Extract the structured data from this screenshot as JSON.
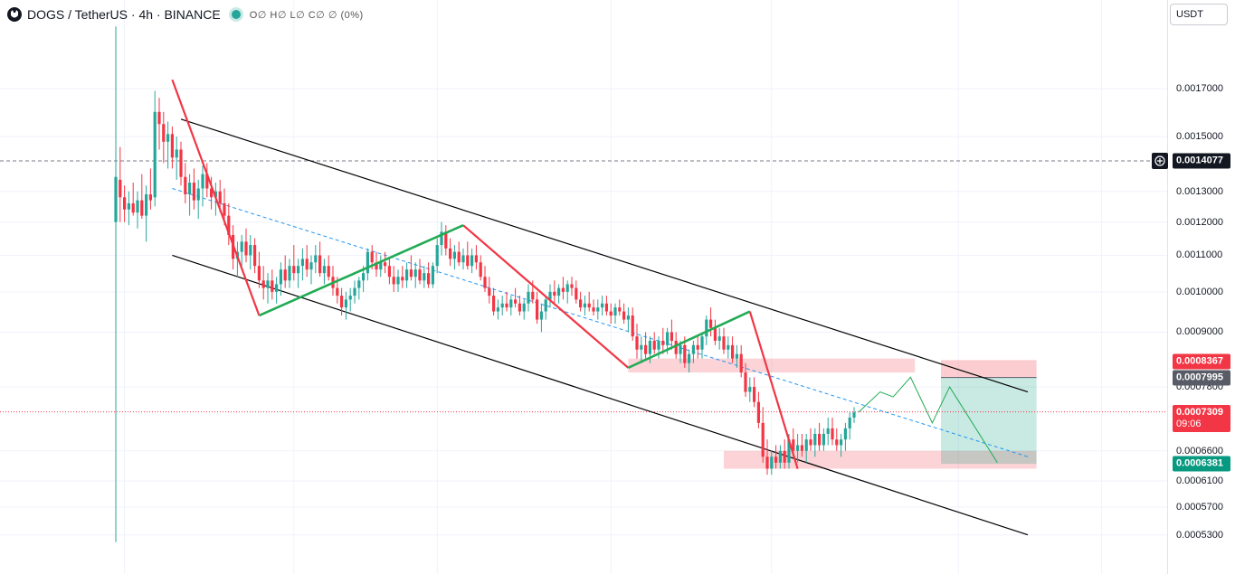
{
  "header": {
    "symbol_title": "DOGS / TetherUS · 4h · BINANCE",
    "ohlc_text": "O∅ H∅ L∅ C∅ ∅ (0%)",
    "logo_icon": "dogs-logo-icon",
    "status_color": "#26a69a"
  },
  "currency_button": {
    "label": "USDT",
    "icon": "chevron-down-icon"
  },
  "price_tags": {
    "crosshair": "0.0014077",
    "stop": "0.0008367",
    "entry": "0.0007995",
    "last": "0.0007309",
    "countdown": "09:06",
    "target": "0.0006381"
  },
  "colors": {
    "up": "#26a69a",
    "down": "#f23645",
    "zigzag_down": "#f23645",
    "zigzag_up": "#22ab55",
    "channel": "#000000",
    "midline": "#2196f3"
  },
  "chart_data": {
    "type": "candlestick",
    "symbol": "DOGS/USDT",
    "timeframe": "4h",
    "exchange": "BINANCE",
    "y_scale": "log",
    "y_range": [
      0.00051,
      0.00195
    ],
    "y_ticks": [
      "0.0017000",
      "0.0015000",
      "0.0013000",
      "0.0012000",
      "0.0011000",
      "0.0010000",
      "0.0009000",
      "0.0007800",
      "0.0006600",
      "0.0006100",
      "0.0005700",
      "0.0005300"
    ],
    "x_range": [
      0,
      240
    ],
    "vertical_gridlines_at": [
      2,
      41,
      74,
      114,
      151,
      194,
      227,
      249
    ],
    "candles": [
      [
        0,
        0.0012,
        0.002,
        0.00052,
        0.00135
      ],
      [
        1,
        0.00134,
        0.00146,
        0.0012,
        0.00128
      ],
      [
        2,
        0.00128,
        0.00132,
        0.0012,
        0.00124
      ],
      [
        3,
        0.00124,
        0.0013,
        0.00119,
        0.00126
      ],
      [
        4,
        0.00126,
        0.00133,
        0.00122,
        0.00123
      ],
      [
        5,
        0.00123,
        0.0013,
        0.00118,
        0.00127
      ],
      [
        6,
        0.00127,
        0.00136,
        0.00121,
        0.00122
      ],
      [
        7,
        0.00122,
        0.00132,
        0.00114,
        0.00129
      ],
      [
        8,
        0.00129,
        0.00138,
        0.00124,
        0.00127
      ],
      [
        9,
        0.00128,
        0.00169,
        0.00125,
        0.0016
      ],
      [
        10,
        0.0016,
        0.00166,
        0.00145,
        0.00155
      ],
      [
        11,
        0.00155,
        0.0016,
        0.0014,
        0.00148
      ],
      [
        12,
        0.00148,
        0.00156,
        0.00138,
        0.00151
      ],
      [
        13,
        0.00151,
        0.00154,
        0.00138,
        0.00142
      ],
      [
        14,
        0.00142,
        0.0015,
        0.00134,
        0.00145
      ],
      [
        15,
        0.00145,
        0.00148,
        0.00132,
        0.00135
      ],
      [
        16,
        0.00135,
        0.0014,
        0.00126,
        0.00129
      ],
      [
        17,
        0.00129,
        0.00136,
        0.00122,
        0.00133
      ],
      [
        18,
        0.00133,
        0.00138,
        0.00124,
        0.00127
      ],
      [
        19,
        0.00127,
        0.00134,
        0.00121,
        0.00131
      ],
      [
        20,
        0.00131,
        0.00139,
        0.00125,
        0.00136
      ],
      [
        21,
        0.00136,
        0.0014,
        0.00128,
        0.00131
      ],
      [
        22,
        0.00131,
        0.00135,
        0.00124,
        0.00128
      ],
      [
        23,
        0.00128,
        0.00133,
        0.00122,
        0.0013
      ],
      [
        24,
        0.0013,
        0.00134,
        0.00123,
        0.00126
      ],
      [
        25,
        0.00126,
        0.00131,
        0.00119,
        0.00122
      ],
      [
        26,
        0.00122,
        0.00126,
        0.00113,
        0.00116
      ],
      [
        27,
        0.00116,
        0.00119,
        0.00106,
        0.00109
      ],
      [
        28,
        0.00109,
        0.00114,
        0.00104,
        0.00111
      ],
      [
        29,
        0.00111,
        0.00116,
        0.00107,
        0.00114
      ],
      [
        30,
        0.00114,
        0.00118,
        0.00108,
        0.0011
      ],
      [
        31,
        0.0011,
        0.00116,
        0.00106,
        0.00113
      ],
      [
        32,
        0.00113,
        0.00115,
        0.00105,
        0.00107
      ],
      [
        33,
        0.00107,
        0.00111,
        0.00101,
        0.00103
      ],
      [
        34,
        0.00103,
        0.00107,
        0.00098,
        0.00101
      ],
      [
        35,
        0.00101,
        0.00105,
        0.00097,
        0.00103
      ],
      [
        36,
        0.00103,
        0.00106,
        0.00098,
        0.001
      ],
      [
        37,
        0.001,
        0.00104,
        0.00097,
        0.00102
      ],
      [
        38,
        0.00102,
        0.00108,
        0.00099,
        0.00106
      ],
      [
        39,
        0.00106,
        0.0011,
        0.00101,
        0.00103
      ],
      [
        40,
        0.00103,
        0.00109,
        0.00101,
        0.00107
      ],
      [
        41,
        0.00107,
        0.00113,
        0.00103,
        0.00105
      ],
      [
        42,
        0.00105,
        0.00109,
        0.00101,
        0.00107
      ],
      [
        43,
        0.00107,
        0.00112,
        0.00103,
        0.00109
      ],
      [
        44,
        0.00109,
        0.00113,
        0.00104,
        0.00106
      ],
      [
        45,
        0.00106,
        0.0011,
        0.00102,
        0.00108
      ],
      [
        46,
        0.00108,
        0.00113,
        0.00105,
        0.0011
      ],
      [
        47,
        0.0011,
        0.00114,
        0.00104,
        0.00105
      ],
      [
        48,
        0.00105,
        0.00109,
        0.00102,
        0.00107
      ],
      [
        49,
        0.00107,
        0.0011,
        0.00103,
        0.00104
      ],
      [
        50,
        0.00104,
        0.00107,
        0.00099,
        0.00101
      ],
      [
        51,
        0.00101,
        0.00104,
        0.00097,
        0.00099
      ],
      [
        52,
        0.00099,
        0.00101,
        0.00094,
        0.00096
      ],
      [
        53,
        0.00096,
        0.001,
        0.00093,
        0.00098
      ],
      [
        54,
        0.00098,
        0.00101,
        0.00095,
        0.00099
      ],
      [
        55,
        0.00099,
        0.00103,
        0.00097,
        0.00101
      ],
      [
        56,
        0.00101,
        0.00104,
        0.00098,
        0.00103
      ],
      [
        57,
        0.00103,
        0.00107,
        0.001,
        0.00105
      ],
      [
        58,
        0.00105,
        0.00112,
        0.00103,
        0.00111
      ],
      [
        59,
        0.00111,
        0.00113,
        0.00106,
        0.00108
      ],
      [
        60,
        0.00108,
        0.00111,
        0.00104,
        0.00106
      ],
      [
        61,
        0.00106,
        0.0011,
        0.00104,
        0.00108
      ],
      [
        62,
        0.00108,
        0.00111,
        0.00105,
        0.00107
      ],
      [
        63,
        0.00107,
        0.00109,
        0.00102,
        0.00104
      ],
      [
        64,
        0.00104,
        0.00107,
        0.001,
        0.00102
      ],
      [
        65,
        0.00102,
        0.00106,
        0.001,
        0.00104
      ],
      [
        66,
        0.00104,
        0.00107,
        0.00101,
        0.00103
      ],
      [
        67,
        0.00103,
        0.00108,
        0.00101,
        0.00106
      ],
      [
        68,
        0.00106,
        0.0011,
        0.00103,
        0.00104
      ],
      [
        69,
        0.00104,
        0.00108,
        0.00101,
        0.00106
      ],
      [
        70,
        0.00106,
        0.00109,
        0.00102,
        0.00103
      ],
      [
        71,
        0.00103,
        0.00107,
        0.00101,
        0.00105
      ],
      [
        72,
        0.00105,
        0.00108,
        0.00101,
        0.00102
      ],
      [
        73,
        0.00102,
        0.00108,
        0.00101,
        0.00107
      ],
      [
        74,
        0.00107,
        0.00115,
        0.00105,
        0.00113
      ],
      [
        75,
        0.00113,
        0.0012,
        0.0011,
        0.00117
      ],
      [
        76,
        0.00117,
        0.00119,
        0.0011,
        0.00112
      ],
      [
        77,
        0.00112,
        0.00115,
        0.00107,
        0.00109
      ],
      [
        78,
        0.00109,
        0.00113,
        0.00106,
        0.00111
      ],
      [
        79,
        0.00111,
        0.00114,
        0.00107,
        0.00108
      ],
      [
        80,
        0.00108,
        0.00112,
        0.00106,
        0.0011
      ],
      [
        81,
        0.0011,
        0.00114,
        0.00106,
        0.00107
      ],
      [
        82,
        0.00107,
        0.00112,
        0.00105,
        0.0011
      ],
      [
        83,
        0.0011,
        0.00113,
        0.00106,
        0.00108
      ],
      [
        84,
        0.00108,
        0.0011,
        0.00103,
        0.00104
      ],
      [
        85,
        0.00104,
        0.00107,
        0.001,
        0.00101
      ],
      [
        86,
        0.00101,
        0.00104,
        0.00097,
        0.00099
      ],
      [
        87,
        0.00099,
        0.00101,
        0.00094,
        0.00095
      ],
      [
        88,
        0.00095,
        0.00098,
        0.00093,
        0.00096
      ],
      [
        89,
        0.00096,
        0.00099,
        0.00094,
        0.00097
      ],
      [
        90,
        0.00097,
        0.001,
        0.00095,
        0.00096
      ],
      [
        91,
        0.00096,
        0.00099,
        0.00094,
        0.00098
      ],
      [
        92,
        0.00098,
        0.00101,
        0.00096,
        0.00097
      ],
      [
        93,
        0.00097,
        0.00099,
        0.00094,
        0.00095
      ],
      [
        94,
        0.00095,
        0.00098,
        0.00093,
        0.00097
      ],
      [
        95,
        0.00097,
        0.00102,
        0.00095,
        0.001
      ],
      [
        96,
        0.001,
        0.00103,
        0.00097,
        0.00098
      ],
      [
        97,
        0.00098,
        0.001,
        0.00092,
        0.00093
      ],
      [
        98,
        0.00093,
        0.00097,
        0.0009,
        0.00095
      ],
      [
        99,
        0.00095,
        0.00099,
        0.00093,
        0.00098
      ],
      [
        100,
        0.00098,
        0.00102,
        0.00096,
        0.001
      ],
      [
        101,
        0.001,
        0.00103,
        0.00097,
        0.00099
      ],
      [
        102,
        0.00099,
        0.00102,
        0.00097,
        0.00101
      ],
      [
        103,
        0.00101,
        0.00104,
        0.00098,
        0.001
      ],
      [
        104,
        0.001,
        0.00103,
        0.00097,
        0.00102
      ],
      [
        105,
        0.00102,
        0.00104,
        0.00099,
        0.00101
      ],
      [
        106,
        0.00101,
        0.00103,
        0.00097,
        0.00098
      ],
      [
        107,
        0.00098,
        0.001,
        0.00095,
        0.00096
      ],
      [
        108,
        0.00096,
        0.00099,
        0.00094,
        0.00097
      ],
      [
        109,
        0.00097,
        0.001,
        0.00095,
        0.00096
      ],
      [
        110,
        0.00096,
        0.00098,
        0.00094,
        0.00095
      ],
      [
        111,
        0.00095,
        0.00098,
        0.00093,
        0.00096
      ],
      [
        112,
        0.00096,
        0.00099,
        0.00094,
        0.00097
      ],
      [
        113,
        0.00097,
        0.00099,
        0.00094,
        0.00095
      ],
      [
        114,
        0.00095,
        0.00097,
        0.00092,
        0.00094
      ],
      [
        115,
        0.00094,
        0.00097,
        0.00092,
        0.00096
      ],
      [
        116,
        0.00096,
        0.00098,
        0.00094,
        0.00095
      ],
      [
        117,
        0.00095,
        0.00097,
        0.00092,
        0.00093
      ],
      [
        118,
        0.00093,
        0.00096,
        0.0009,
        0.00094
      ],
      [
        119,
        0.00094,
        0.00096,
        0.00088,
        0.00089
      ],
      [
        120,
        0.00089,
        0.00092,
        0.00084,
        0.00086
      ],
      [
        121,
        0.00086,
        0.00089,
        0.00083,
        0.00087
      ],
      [
        122,
        0.00087,
        0.0009,
        0.00084,
        0.00085
      ],
      [
        123,
        0.00085,
        0.00089,
        0.00083,
        0.00088
      ],
      [
        124,
        0.00088,
        0.0009,
        0.00085,
        0.00086
      ],
      [
        125,
        0.00086,
        0.00089,
        0.00084,
        0.00088
      ],
      [
        126,
        0.00088,
        0.00091,
        0.00085,
        0.00087
      ],
      [
        127,
        0.00087,
        0.00091,
        0.00085,
        0.0009
      ],
      [
        128,
        0.0009,
        0.00093,
        0.00086,
        0.00088
      ],
      [
        129,
        0.00088,
        0.0009,
        0.00084,
        0.00085
      ],
      [
        130,
        0.00085,
        0.00088,
        0.00083,
        0.00087
      ],
      [
        131,
        0.00087,
        0.00089,
        0.00082,
        0.00083
      ],
      [
        132,
        0.00083,
        0.00086,
        0.00081,
        0.00085
      ],
      [
        133,
        0.00085,
        0.00088,
        0.00083,
        0.00087
      ],
      [
        134,
        0.00087,
        0.00089,
        0.00084,
        0.00086
      ],
      [
        135,
        0.00086,
        0.0009,
        0.00084,
        0.00089
      ],
      [
        136,
        0.00089,
        0.00094,
        0.00087,
        0.00093
      ],
      [
        137,
        0.00093,
        0.00096,
        0.00089,
        0.00091
      ],
      [
        138,
        0.00091,
        0.00093,
        0.00087,
        0.00088
      ],
      [
        139,
        0.00088,
        0.00091,
        0.00086,
        0.00089
      ],
      [
        140,
        0.00089,
        0.00091,
        0.00085,
        0.00086
      ],
      [
        141,
        0.00086,
        0.00089,
        0.00084,
        0.00087
      ],
      [
        142,
        0.00087,
        0.00089,
        0.00083,
        0.00084
      ],
      [
        143,
        0.00084,
        0.00087,
        0.00082,
        0.00085
      ],
      [
        144,
        0.00085,
        0.00087,
        0.0008,
        0.00081
      ],
      [
        145,
        0.00081,
        0.00083,
        0.00076,
        0.00077
      ],
      [
        146,
        0.00077,
        0.0008,
        0.00075,
        0.00078
      ],
      [
        147,
        0.00078,
        0.0008,
        0.00074,
        0.00075
      ],
      [
        148,
        0.00075,
        0.00077,
        0.0007,
        0.00071
      ],
      [
        149,
        0.00071,
        0.00074,
        0.00064,
        0.00065
      ],
      [
        150,
        0.00065,
        0.00068,
        0.00062,
        0.00063
      ],
      [
        151,
        0.00063,
        0.00066,
        0.00062,
        0.00065
      ],
      [
        152,
        0.00065,
        0.00067,
        0.00063,
        0.00064
      ],
      [
        153,
        0.00064,
        0.00067,
        0.00063,
        0.00066
      ],
      [
        154,
        0.00066,
        0.00068,
        0.00063,
        0.00064
      ],
      [
        155,
        0.00064,
        0.00069,
        0.00063,
        0.00068
      ],
      [
        156,
        0.00068,
        0.0007,
        0.00065,
        0.00066
      ],
      [
        157,
        0.00066,
        0.00069,
        0.00064,
        0.00067
      ],
      [
        158,
        0.00067,
        0.00069,
        0.00065,
        0.00066
      ],
      [
        159,
        0.00066,
        0.00069,
        0.00064,
        0.00068
      ],
      [
        160,
        0.00068,
        0.0007,
        0.00066,
        0.00067
      ],
      [
        161,
        0.00067,
        0.0007,
        0.00065,
        0.00069
      ],
      [
        162,
        0.00069,
        0.00071,
        0.00066,
        0.00067
      ],
      [
        163,
        0.00067,
        0.0007,
        0.00066,
        0.00069
      ],
      [
        164,
        0.00069,
        0.00072,
        0.00067,
        0.0007
      ],
      [
        165,
        0.0007,
        0.00072,
        0.00067,
        0.00068
      ],
      [
        166,
        0.00068,
        0.0007,
        0.00066,
        0.00067
      ],
      [
        167,
        0.00067,
        0.00069,
        0.00065,
        0.00068
      ],
      [
        168,
        0.00068,
        0.00071,
        0.00066,
        0.0007
      ],
      [
        169,
        0.0007,
        0.00073,
        0.00068,
        0.00072
      ],
      [
        170,
        0.00072,
        0.00074,
        0.00071,
        0.00073
      ]
    ],
    "zigzag_down": [
      [
        [
          13,
          0.00174
        ],
        [
          33,
          0.00094
        ]
      ],
      [
        [
          80,
          0.00119
        ],
        [
          118,
          0.00082
        ]
      ],
      [
        [
          146,
          0.00095
        ],
        [
          157,
          0.00063
        ]
      ]
    ],
    "zigzag_up": [
      [
        [
          33,
          0.00094
        ],
        [
          80,
          0.00119
        ]
      ],
      [
        [
          118,
          0.00082
        ],
        [
          146,
          0.00095
        ]
      ]
    ],
    "channel_upper": [
      [
        15,
        0.00157
      ],
      [
        210,
        0.00077
      ]
    ],
    "channel_lower": [
      [
        13,
        0.0011
      ],
      [
        210,
        0.00053
      ]
    ],
    "channel_mid": [
      [
        13,
        0.00131
      ],
      [
        210,
        0.00065
      ]
    ],
    "projection": [
      [
        171,
        0.00073
      ],
      [
        176,
        0.00077
      ],
      [
        179,
        0.00076
      ],
      [
        183,
        0.0008
      ],
      [
        188,
        0.00071
      ],
      [
        192,
        0.00078
      ],
      [
        203,
        0.00064
      ]
    ],
    "supply_zone": {
      "x": [
        118,
        184
      ],
      "y": [
        0.00081,
        0.00084
      ]
    },
    "demand_zone": {
      "x": [
        140,
        212
      ],
      "y": [
        0.00063,
        0.00066
      ]
    },
    "position_long": {
      "x": [
        190,
        212
      ],
      "entry": 0.0007995,
      "stop": 0.0008367,
      "target": 0.0006381
    },
    "last_price": 0.0007309,
    "crosshair_price": 0.0014077
  }
}
